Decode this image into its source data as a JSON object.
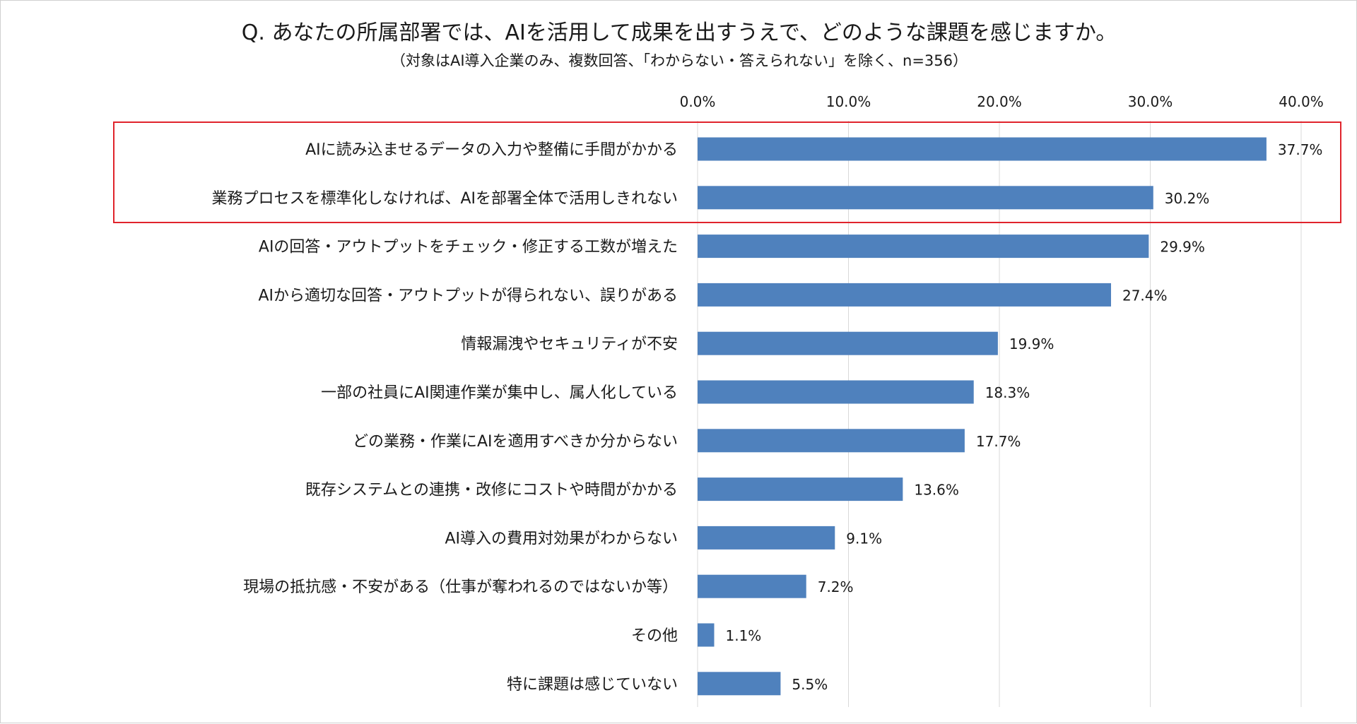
{
  "chart_data": {
    "type": "bar",
    "orientation": "horizontal",
    "title": "Q. あなたの所属部署では、AIを活用して成果を出すうえで、どのような課題を感じますか。",
    "subtitle": "（対象はAI導入企業のみ、複数回答、「わからない・答えられない」を除く、n=356）",
    "xlim": [
      0,
      40
    ],
    "ticks": [
      "0.0%",
      "10.0%",
      "20.0%",
      "30.0%",
      "40.0%"
    ],
    "tick_values": [
      0,
      10,
      20,
      30,
      40
    ],
    "grid": true,
    "bar_color": "#4f81bd",
    "highlight_color": "#e0242c",
    "highlight": "first two categories boxed",
    "categories": [
      "AIに読み込ませるデータの入力や整備に手間がかかる",
      "業務プロセスを標準化しなければ、AIを部署全体で活用しきれない",
      "AIの回答・アウトプットをチェック・修正する工数が増えた",
      "AIから適切な回答・アウトプットが得られない、誤りがある",
      "情報漏洩やセキュリティが不安",
      "一部の社員にAI関連作業が集中し、属人化している",
      "どの業務・作業にAIを適用すべきか分からない",
      "既存システムとの連携・改修にコストや時間がかかる",
      "AI導入の費用対効果がわからない",
      "現場の抵抗感・不安がある（仕事が奪われるのではないか等）",
      "その他",
      "特に課題は感じていない"
    ],
    "values": [
      37.7,
      30.2,
      29.9,
      27.4,
      19.9,
      18.3,
      17.7,
      13.6,
      9.1,
      7.2,
      1.1,
      5.5
    ],
    "value_labels": [
      "37.7%",
      "30.2%",
      "29.9%",
      "27.4%",
      "19.9%",
      "18.3%",
      "17.7%",
      "13.6%",
      "9.1%",
      "7.2%",
      "1.1%",
      "5.5%"
    ]
  }
}
